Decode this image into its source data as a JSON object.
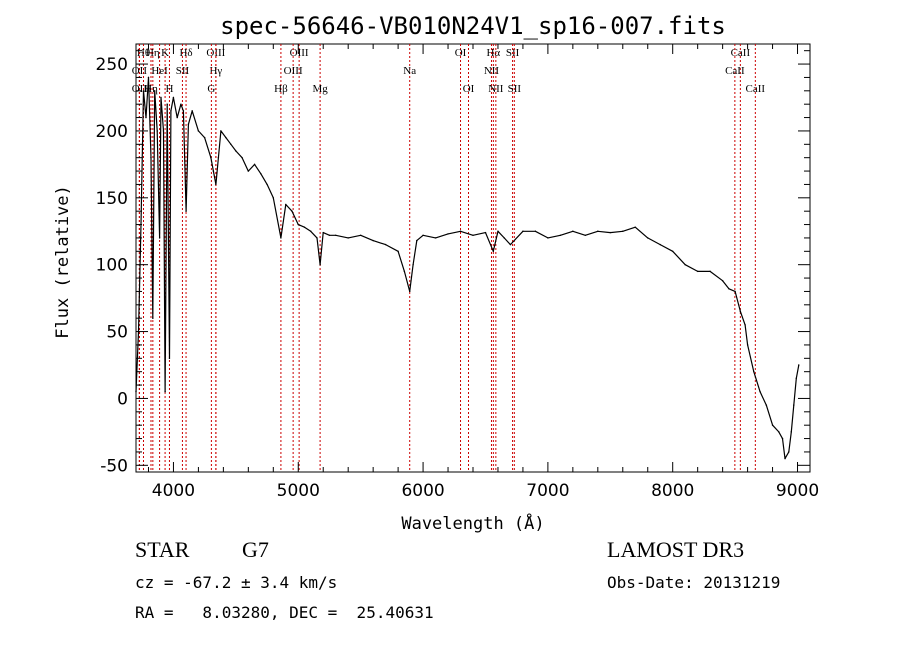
{
  "chart_data": {
    "type": "line",
    "title": "spec-56646-VB010N24V1_sp16-007.fits",
    "xlabel": "Wavelength (Å)",
    "ylabel": "Flux (relative)",
    "xlim": [
      3700,
      9100
    ],
    "ylim": [
      -55,
      265
    ],
    "xticks": [
      4000,
      5000,
      6000,
      7000,
      8000,
      9000
    ],
    "xtick_labels": [
      "4000",
      "5000",
      "6000",
      "7000",
      "8000",
      "9000"
    ],
    "yticks": [
      -50,
      0,
      50,
      100,
      150,
      200,
      250
    ],
    "ytick_labels": [
      "-50",
      "0",
      "50",
      "100",
      "150",
      "200",
      "250"
    ],
    "line_color": "#000000",
    "marker_color": "#cc0000",
    "series": [
      {
        "name": "flux",
        "x": [
          3700,
          3720,
          3740,
          3760,
          3780,
          3800,
          3820,
          3835,
          3850,
          3870,
          3889,
          3900,
          3920,
          3933,
          3950,
          3968,
          3980,
          4000,
          4030,
          4060,
          4080,
          4101,
          4120,
          4150,
          4200,
          4250,
          4300,
          4320,
          4340,
          4360,
          4380,
          4420,
          4460,
          4500,
          4550,
          4600,
          4650,
          4700,
          4750,
          4800,
          4861,
          4900,
          4950,
          5000,
          5050,
          5100,
          5150,
          5175,
          5200,
          5250,
          5300,
          5400,
          5500,
          5600,
          5700,
          5800,
          5850,
          5893,
          5920,
          5950,
          6000,
          6100,
          6200,
          6300,
          6400,
          6500,
          6563,
          6600,
          6650,
          6700,
          6800,
          6900,
          7000,
          7100,
          7200,
          7300,
          7400,
          7500,
          7600,
          7700,
          7800,
          7900,
          8000,
          8100,
          8200,
          8300,
          8400,
          8450,
          8500,
          8542,
          8580,
          8600,
          8650,
          8700,
          8750,
          8800,
          8850,
          8880,
          8900,
          8930,
          8950,
          8970,
          8990,
          9010
        ],
        "y": [
          5,
          50,
          130,
          230,
          210,
          240,
          180,
          60,
          230,
          200,
          120,
          225,
          200,
          5,
          220,
          30,
          215,
          225,
          210,
          220,
          215,
          140,
          205,
          215,
          200,
          195,
          180,
          170,
          160,
          180,
          200,
          195,
          190,
          185,
          180,
          170,
          175,
          168,
          160,
          150,
          120,
          145,
          140,
          130,
          128,
          125,
          120,
          100,
          124,
          122,
          122,
          120,
          122,
          118,
          115,
          110,
          95,
          80,
          100,
          118,
          122,
          120,
          123,
          125,
          122,
          124,
          110,
          125,
          120,
          115,
          125,
          125,
          120,
          122,
          125,
          122,
          125,
          124,
          125,
          128,
          120,
          115,
          110,
          100,
          95,
          95,
          88,
          82,
          80,
          65,
          55,
          40,
          20,
          5,
          -5,
          -20,
          -25,
          -30,
          -45,
          -40,
          -25,
          -5,
          15,
          25
        ]
      }
    ],
    "lines": [
      {
        "x": 3760,
        "label": "Hθ",
        "row": 1
      },
      {
        "x": 3727,
        "label": "OII",
        "row": 2
      },
      {
        "x": 3727,
        "label": "OII",
        "row": 3
      },
      {
        "x": 3835,
        "label": "Hη",
        "row": 1
      },
      {
        "x": 3889,
        "label": "HeI",
        "row": 2
      },
      {
        "x": 3820,
        "label": "Hη",
        "row": 3
      },
      {
        "x": 3933,
        "label": "K",
        "row": 1
      },
      {
        "x": 3968,
        "label": "H",
        "row": 3
      },
      {
        "x": 4101,
        "label": "Hδ",
        "row": 1
      },
      {
        "x": 4072,
        "label": "SII",
        "row": 2
      },
      {
        "x": 4340,
        "label": "OIII",
        "row": 1
      },
      {
        "x": 4340,
        "label": "Hγ",
        "row": 2
      },
      {
        "x": 4304,
        "label": "G",
        "row": 3
      },
      {
        "x": 4861,
        "label": "Hβ",
        "row": 3
      },
      {
        "x": 5007,
        "label": "OIII",
        "row": 1
      },
      {
        "x": 4959,
        "label": "OIII",
        "row": 2
      },
      {
        "x": 5175,
        "label": "Mg",
        "row": 3
      },
      {
        "x": 5893,
        "label": "Na",
        "row": 2
      },
      {
        "x": 6300,
        "label": "OI",
        "row": 1
      },
      {
        "x": 6364,
        "label": "OI",
        "row": 3
      },
      {
        "x": 6563,
        "label": "Hα",
        "row": 1
      },
      {
        "x": 6548,
        "label": "NII",
        "row": 2
      },
      {
        "x": 6583,
        "label": "NII",
        "row": 3
      },
      {
        "x": 6717,
        "label": "SII",
        "row": 1
      },
      {
        "x": 6731,
        "label": "SII",
        "row": 3
      },
      {
        "x": 8542,
        "label": "CaII",
        "row": 1
      },
      {
        "x": 8498,
        "label": "CaII",
        "row": 2
      },
      {
        "x": 8662,
        "label": "CaII",
        "row": 3
      }
    ]
  },
  "info": {
    "class_label": "STAR",
    "subclass": "G7",
    "survey": "LAMOST DR3",
    "cz": "cz = -67.2 ± 3.4 km/s",
    "obs_date": "Obs-Date: 20131219",
    "coords": "RA =   8.03280, DEC =  25.40631"
  }
}
